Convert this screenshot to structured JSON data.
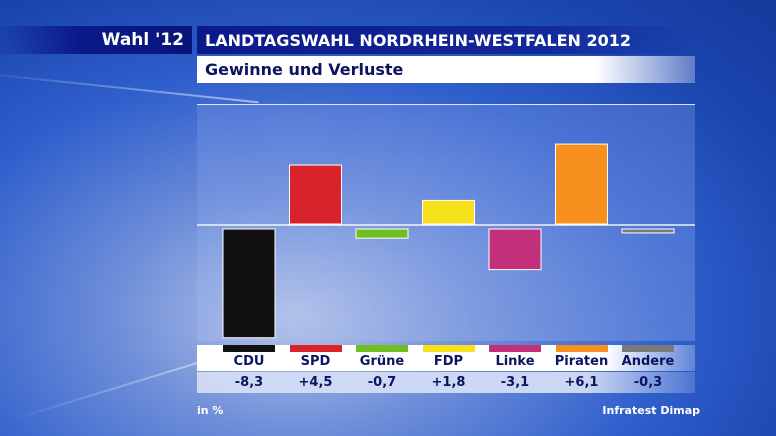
{
  "header": {
    "badge": "Wahl '12",
    "title": "LANDTAGSWAHL NORDRHEIN-WESTFALEN 2012",
    "subtitle": "Gewinne und Verluste"
  },
  "footer": {
    "unit": "in %",
    "source": "Infratest Dimap"
  },
  "chart_data": {
    "type": "bar",
    "title": "Gewinne und Verluste",
    "categories": [
      "CDU",
      "SPD",
      "Grüne",
      "FDP",
      "Linke",
      "Piraten",
      "Andere"
    ],
    "values": [
      -8.3,
      4.5,
      -0.7,
      1.8,
      -3.1,
      6.1,
      -0.3
    ],
    "value_labels": [
      "-8,3",
      "+4,5",
      "-0,7",
      "+1,8",
      "-3,1",
      "+6,1",
      "-0,3"
    ],
    "colors": [
      "#111111",
      "#d9222a",
      "#6fbf1f",
      "#f7e11a",
      "#c2307c",
      "#f7901e",
      "#7a7a7a"
    ],
    "ylim": [
      -8.3,
      6.1
    ],
    "grid": false
  }
}
